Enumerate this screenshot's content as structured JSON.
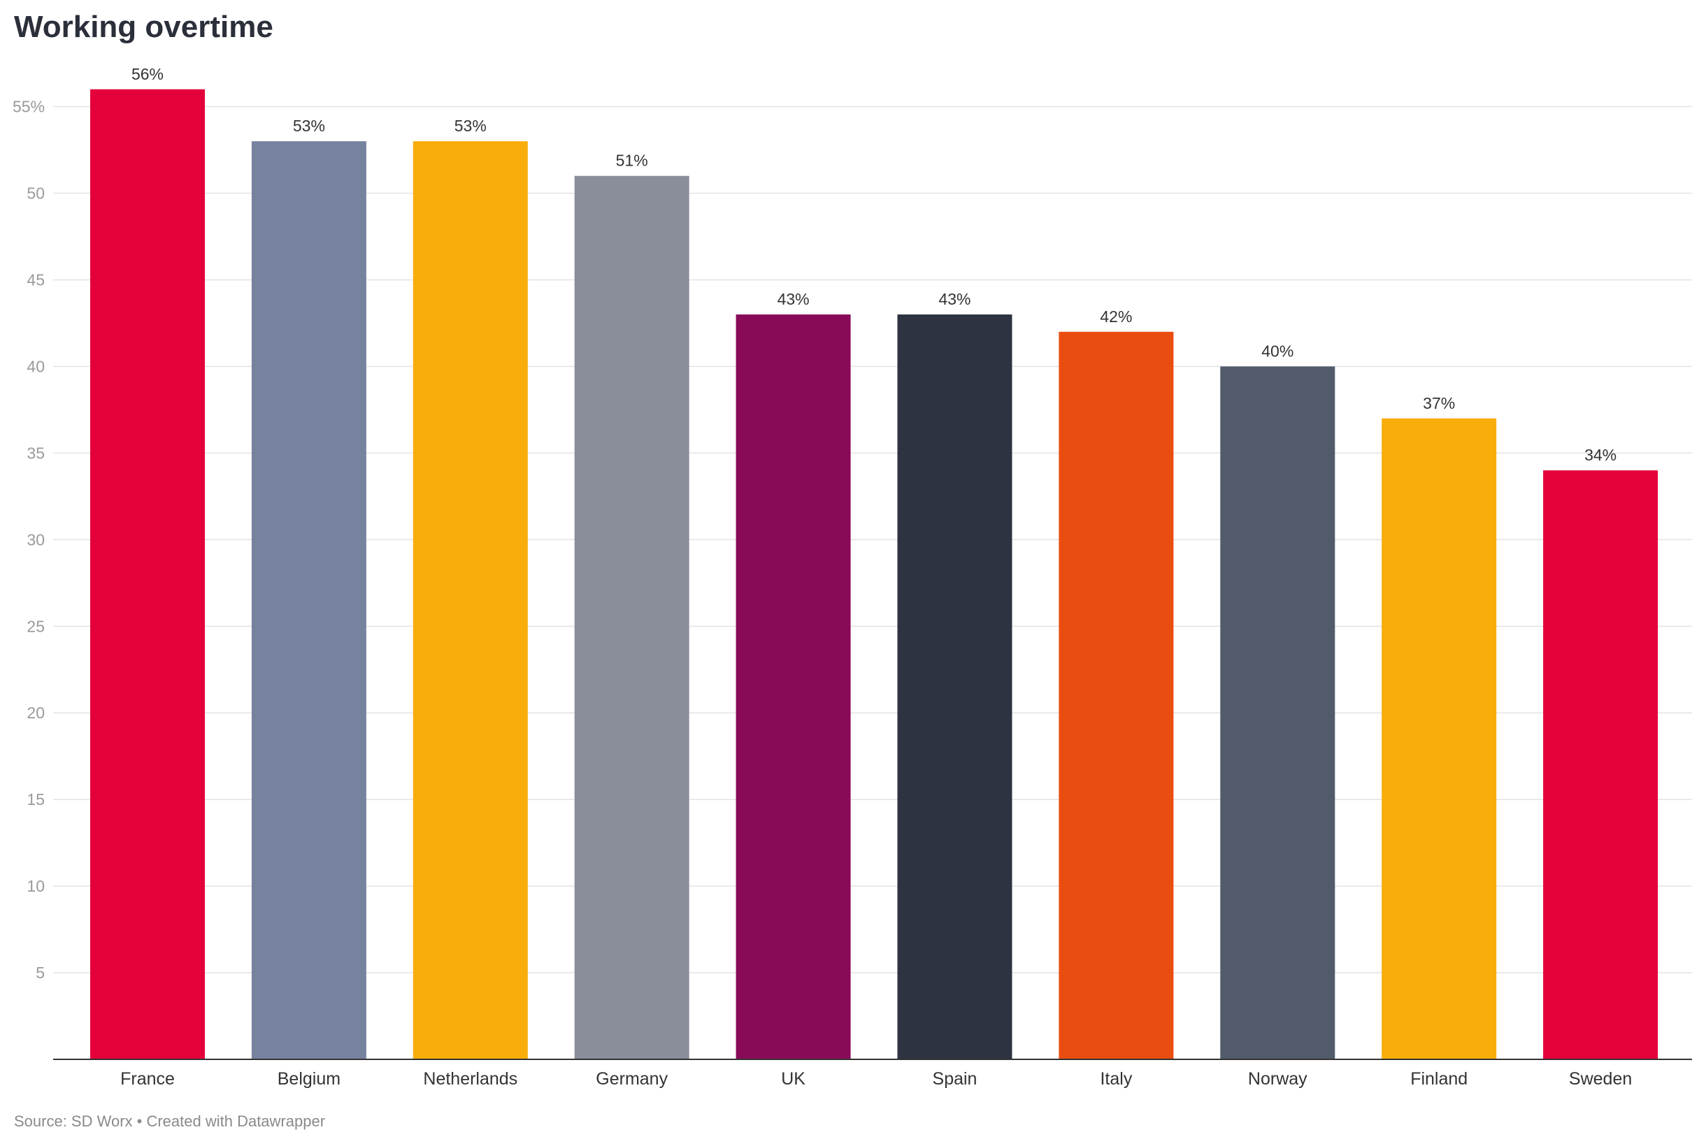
{
  "chart_data": {
    "type": "bar",
    "title": "Working overtime",
    "categories": [
      "France",
      "Belgium",
      "Netherlands",
      "Germany",
      "UK",
      "Spain",
      "Italy",
      "Norway",
      "Finland",
      "Sweden"
    ],
    "values": [
      56,
      53,
      53,
      51,
      43,
      43,
      42,
      40,
      37,
      34
    ],
    "value_labels": [
      "56%",
      "53%",
      "53%",
      "51%",
      "43%",
      "43%",
      "42%",
      "40%",
      "37%",
      "34%"
    ],
    "colors": [
      "#e4003b",
      "#77839e",
      "#f8ad0a",
      "#898e9a",
      "#890b58",
      "#2d3340",
      "#e94e10",
      "#525b6c",
      "#f8ad0a",
      "#e4003b"
    ],
    "yticks": [
      5,
      10,
      15,
      20,
      25,
      30,
      35,
      40,
      45,
      50,
      55
    ],
    "ytick_labels": [
      "5",
      "10",
      "15",
      "20",
      "25",
      "30",
      "35",
      "40",
      "45",
      "50",
      "55%"
    ],
    "ylim": [
      0,
      56
    ],
    "xlabel": "",
    "ylabel": "",
    "grid": true
  },
  "footer": {
    "source": "Source: SD Worx • Created with Datawrapper"
  }
}
